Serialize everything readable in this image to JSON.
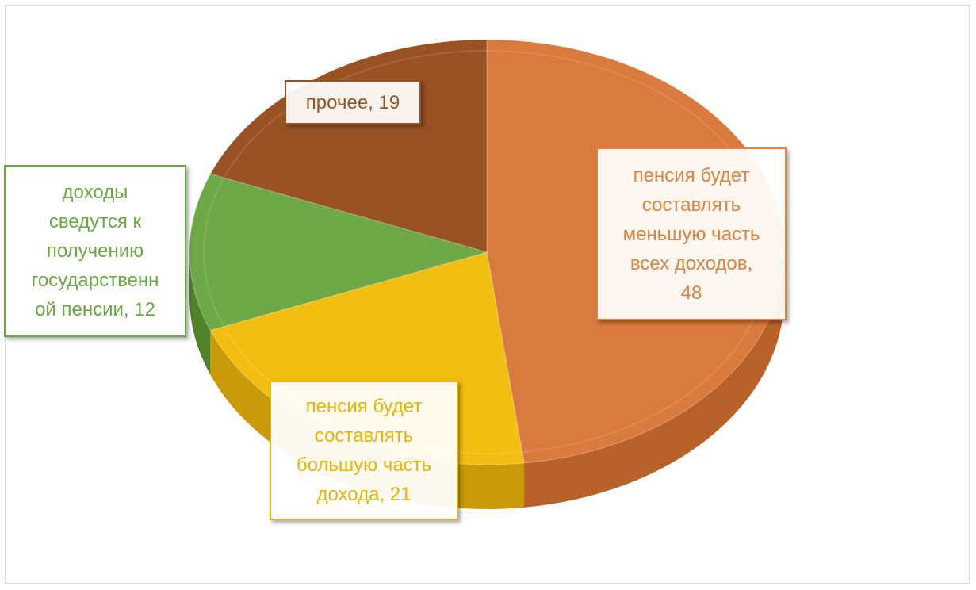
{
  "chart_data": {
    "type": "pie",
    "title": "",
    "start_angle_deg": -90,
    "slices": [
      {
        "label": "пенсия будет составлять меньшую часть всех доходов",
        "value": 48,
        "label_text": "пенсия будет составлять меньшую часть всех доходов, 48",
        "color": "#D97B3E",
        "side_color": "#B8612A",
        "text_color": "#E0823E"
      },
      {
        "label": "пенсия будет составлять большую часть дохода",
        "value": 21,
        "label_text": "пенсия будет составлять большую часть дохода, 21",
        "color": "#F2BE12",
        "side_color": "#C99A0A",
        "text_color": "#E8B40A"
      },
      {
        "label": "доходы сведутся к получению государственной пенсии",
        "value": 12,
        "label_text": "доходы сведутся к получению государственной пенсии, 12",
        "color": "#6FA846",
        "side_color": "#4F8229",
        "text_color": "#6AA843"
      },
      {
        "label": "прочее",
        "value": 19,
        "label_text": "прочее, 19",
        "color": "#9A5225",
        "side_color": "#7A3E1A",
        "text_color": "#9A5225"
      }
    ],
    "label_lines": [
      [
        "пенсия будет",
        "составлять",
        "меньшую часть",
        "всех доходов,",
        "48"
      ],
      [
        "пенсия будет",
        "составлять",
        "большую часть",
        "дохода, 21"
      ],
      [
        "доходы",
        "сведутся к",
        "получению",
        "государственн",
        "ой пенсии, 12"
      ],
      [
        "прочее, 19"
      ]
    ]
  }
}
